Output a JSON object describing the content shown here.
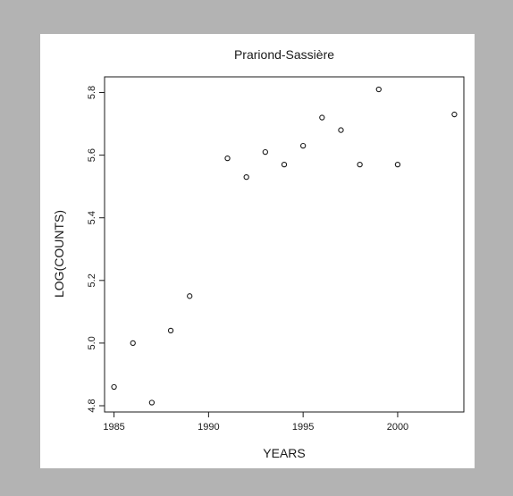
{
  "chart_data": {
    "type": "scatter",
    "title": "Prariond-Sassière",
    "xlabel": "YEARS",
    "ylabel": "LOG(COUNTS)",
    "xlim": [
      1984.5,
      2003.5
    ],
    "ylim": [
      4.78,
      5.85
    ],
    "x_ticks": [
      1985,
      1990,
      1995,
      2000
    ],
    "x_tick_labels": [
      "1985",
      "1990",
      "1995",
      "2000"
    ],
    "y_ticks": [
      4.8,
      5.0,
      5.2,
      5.4,
      5.6,
      5.8
    ],
    "y_tick_labels": [
      "4.8",
      "5.0",
      "5.2",
      "5.4",
      "5.6",
      "5.8"
    ],
    "grid": false,
    "marker": "open-circle",
    "points": [
      {
        "x": 1985,
        "y": 4.86
      },
      {
        "x": 1986,
        "y": 5.0
      },
      {
        "x": 1987,
        "y": 4.81
      },
      {
        "x": 1988,
        "y": 5.04
      },
      {
        "x": 1989,
        "y": 5.15
      },
      {
        "x": 1991,
        "y": 5.59
      },
      {
        "x": 1992,
        "y": 5.53
      },
      {
        "x": 1993,
        "y": 5.61
      },
      {
        "x": 1994,
        "y": 5.57
      },
      {
        "x": 1995,
        "y": 5.63
      },
      {
        "x": 1996,
        "y": 5.72
      },
      {
        "x": 1997,
        "y": 5.68
      },
      {
        "x": 1998,
        "y": 5.57
      },
      {
        "x": 1999,
        "y": 5.81
      },
      {
        "x": 2000,
        "y": 5.57
      },
      {
        "x": 2003,
        "y": 5.73
      }
    ]
  }
}
